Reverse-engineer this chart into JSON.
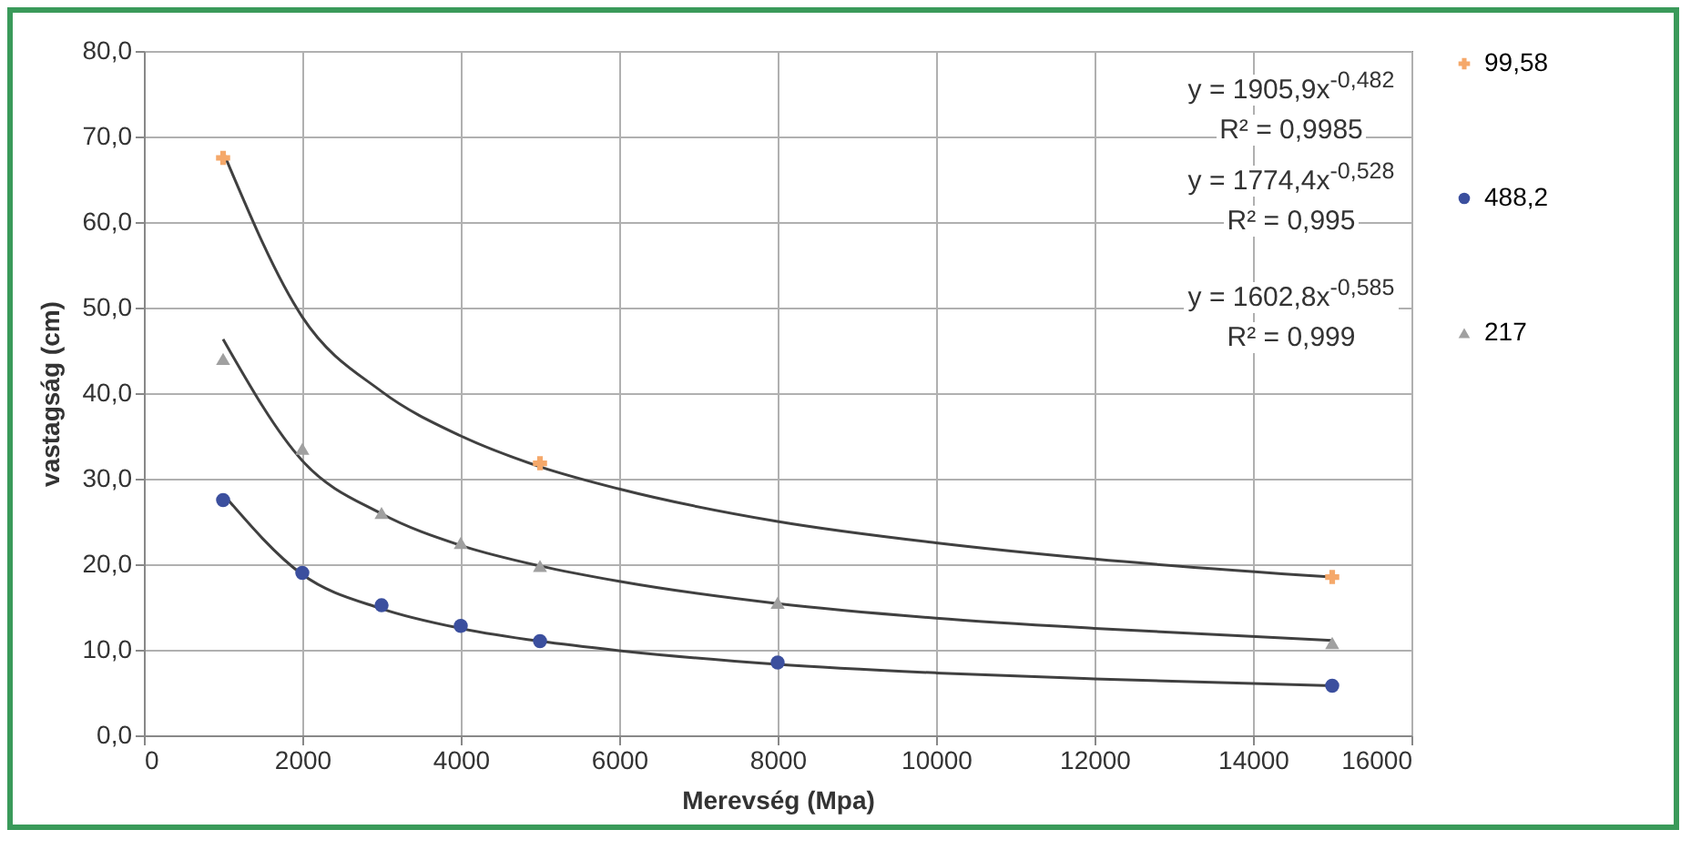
{
  "chart_data": {
    "type": "scatter",
    "xlabel": "Merevség (Mpa)",
    "ylabel": "vastagság (cm)",
    "xlim": [
      0,
      16000
    ],
    "xticks": [
      0,
      2000,
      4000,
      6000,
      8000,
      10000,
      12000,
      14000,
      16000
    ],
    "ylim": [
      0,
      80
    ],
    "yticks": [
      {
        "value": 0,
        "label": "0,0"
      },
      {
        "value": 10,
        "label": "10,0"
      },
      {
        "value": 20,
        "label": "20,0"
      },
      {
        "value": 30,
        "label": "30,0"
      },
      {
        "value": 40,
        "label": "40,0"
      },
      {
        "value": 50,
        "label": "50,0"
      },
      {
        "value": 60,
        "label": "60,0"
      },
      {
        "value": 70,
        "label": "70,0"
      },
      {
        "value": 80,
        "label": "80,0"
      }
    ],
    "grid": true,
    "legend": "right",
    "annotations": [
      "y = 1905,9x$^{-0,482}$",
      "R² = 0,9985",
      "y = 1774,4x$^{-0,528}$",
      "R² = 0,995",
      "y = 1602,8x$^{-0,585}$",
      "R² = 0,999"
    ],
    "series": [
      {
        "name": "99,58",
        "color": "#f5a86a",
        "marker": "cross",
        "x": [
          1000,
          5000,
          15000
        ],
        "values": [
          67.5,
          31.8,
          18.5
        ]
      },
      {
        "name": "488,2",
        "color": "#3b4f9e",
        "marker": "circle",
        "x": [
          1000,
          2000,
          3000,
          4000,
          5000,
          8000,
          15000
        ],
        "values": [
          27.5,
          19,
          15.2,
          12.8,
          11,
          8.5,
          5.8
        ]
      },
      {
        "name": "217",
        "color": "#a0a0a0",
        "marker": "triangle",
        "x": [
          1000,
          2000,
          3000,
          4000,
          5000,
          8000,
          15000
        ],
        "values": [
          44,
          33.5,
          26,
          22.5,
          19.8,
          15.5,
          10.8
        ]
      },
      {
        "type": "line",
        "color": "#404040",
        "marker": "none",
        "x": [
          1000,
          2000,
          3000,
          4000,
          5000,
          6000,
          8000,
          10000,
          12000,
          15000
        ],
        "values": [
          68.2,
          48.9,
          40.2,
          35,
          31.4,
          28.8,
          25,
          22.5,
          20.6,
          18.5
        ]
      },
      {
        "type": "line",
        "color": "#404040",
        "marker": "none",
        "x": [
          1000,
          2000,
          3000,
          4000,
          5000,
          6000,
          8000,
          10000,
          12000,
          15000
        ],
        "values": [
          46.3,
          32.1,
          25.9,
          22.2,
          19.8,
          18,
          15.4,
          13.7,
          12.5,
          11.1
        ]
      },
      {
        "type": "line",
        "color": "#404040",
        "marker": "none",
        "x": [
          1000,
          2000,
          3000,
          4000,
          5000,
          6000,
          8000,
          10000,
          12000,
          15000
        ],
        "values": [
          28.2,
          18.8,
          14.8,
          12.5,
          11,
          9.9,
          8.3,
          7.3,
          6.6,
          5.8
        ]
      }
    ]
  }
}
